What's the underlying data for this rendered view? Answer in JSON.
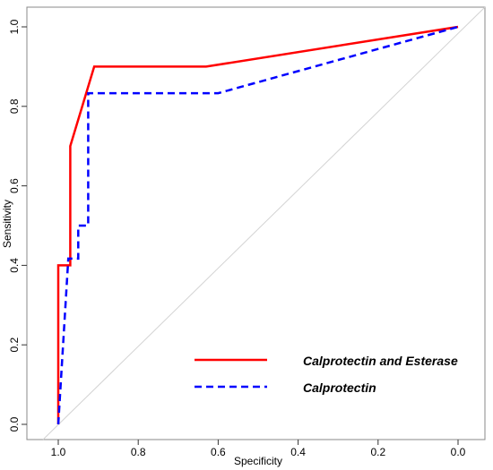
{
  "chart_data": {
    "type": "line",
    "subtype": "roc",
    "xlabel": "Specificity",
    "ylabel": "Sensitivity",
    "xlim": [
      1.05,
      -0.07
    ],
    "ylim": [
      -0.03,
      1.03
    ],
    "x_reversed": true,
    "x_ticks": [
      1.0,
      0.8,
      0.6,
      0.4,
      0.2,
      0.0
    ],
    "x_tick_labels": [
      "1.0",
      "0.8",
      "0.6",
      "0.4",
      "0.2",
      "0.0"
    ],
    "y_ticks": [
      0.0,
      0.2,
      0.4,
      0.6,
      0.8,
      1.0
    ],
    "y_tick_labels": [
      "0.0",
      "0.2",
      "0.4",
      "0.6",
      "0.8",
      "1.0"
    ],
    "grid": false,
    "legend_position": "bottom-right",
    "reference_line": {
      "from": [
        1.0,
        0.0
      ],
      "to": [
        0.0,
        1.0
      ],
      "color": "#d3d3d3"
    },
    "series": [
      {
        "name": "Calprotectin and Esterase",
        "color": "#ff0000",
        "style": "solid",
        "x": [
          1.0,
          1.0,
          0.97,
          0.97,
          0.91,
          0.63,
          0.0
        ],
        "y": [
          0.0,
          0.4,
          0.4,
          0.7,
          0.9,
          0.9,
          1.0
        ]
      },
      {
        "name": "Calprotectin",
        "color": "#0000ff",
        "style": "dashed",
        "x": [
          1.0,
          0.975,
          0.975,
          0.95,
          0.95,
          0.925,
          0.925,
          0.6,
          0.0
        ],
        "y": [
          0.0,
          0.417,
          0.417,
          0.417,
          0.5,
          0.5,
          0.833,
          0.833,
          1.0
        ]
      }
    ]
  }
}
